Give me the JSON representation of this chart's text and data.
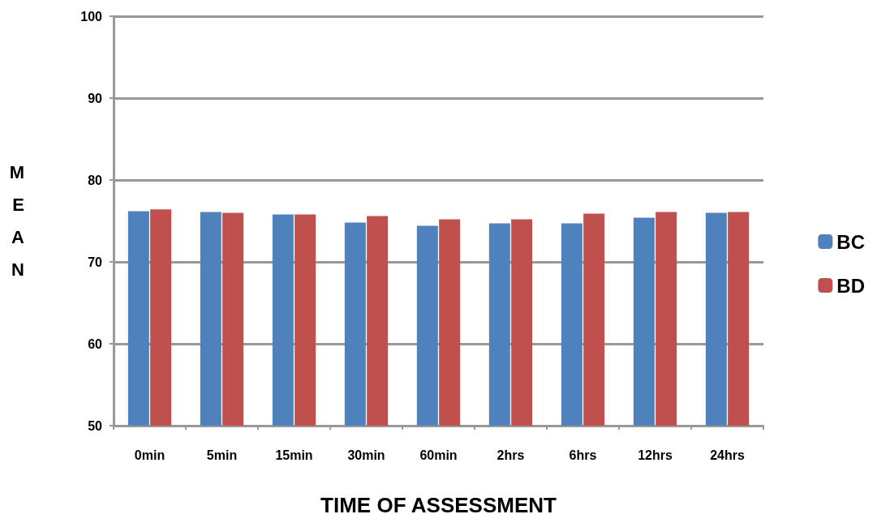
{
  "chart_data": {
    "type": "bar",
    "xlabel": "TIME OF ASSESSMENT",
    "ylabel": "MEAN",
    "categories": [
      "0min",
      "5min",
      "15min",
      "30min",
      "60min",
      "2hrs",
      "6hrs",
      "12hrs",
      "24hrs"
    ],
    "series": [
      {
        "name": "BC",
        "color": "#4f81bd",
        "values": [
          76.2,
          76.1,
          75.8,
          74.8,
          74.4,
          74.7,
          74.7,
          75.4,
          76.0
        ]
      },
      {
        "name": "BD",
        "color": "#c0504d",
        "values": [
          76.4,
          76.0,
          75.8,
          75.6,
          75.2,
          75.2,
          75.9,
          76.1,
          76.1
        ]
      }
    ],
    "ylim": [
      50,
      100
    ],
    "yticks": [
      50,
      60,
      70,
      80,
      90,
      100
    ],
    "grid": "y",
    "legend": "right"
  }
}
